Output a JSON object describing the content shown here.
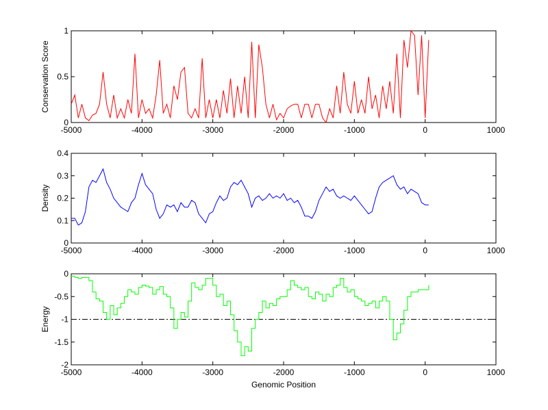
{
  "chart_data": [
    {
      "type": "line",
      "ylabel": "Conservation Score",
      "xlabel": "",
      "xlim": [
        -5000,
        1000
      ],
      "ylim": [
        0,
        1
      ],
      "xticks": [
        "-5000",
        "-4000",
        "-3000",
        "-2000",
        "-1000",
        "0",
        "1000"
      ],
      "yticks": [
        "0",
        "0.5",
        "1"
      ],
      "ytick_values": [
        0,
        0.5,
        1
      ],
      "color": "#ff0000",
      "x_start": -5000,
      "x_step": 50,
      "step": false,
      "values": [
        0.2,
        0.3,
        0.05,
        0.2,
        0.05,
        0.02,
        0.08,
        0.1,
        0.2,
        0.55,
        0.2,
        0.05,
        0.3,
        0.05,
        0.15,
        0.05,
        0.25,
        0.1,
        0.75,
        0.05,
        0.25,
        0.1,
        0.15,
        0.05,
        0.3,
        0.68,
        0.1,
        0.2,
        0.05,
        0.4,
        0.25,
        0.55,
        0.6,
        0.1,
        0.05,
        0.15,
        0.05,
        0.7,
        0.05,
        0.25,
        0.05,
        0.25,
        0.05,
        0.35,
        0.1,
        0.48,
        0.05,
        0.4,
        0.1,
        0.5,
        0.05,
        0.88,
        0.05,
        0.85,
        0.6,
        0.2,
        0.05,
        0.2,
        0.03,
        0.1,
        0.05,
        0.15,
        0.18,
        0.2,
        0.2,
        0.05,
        0.2,
        0.2,
        0.05,
        0.2,
        0.2,
        0.05,
        0.0,
        0.15,
        0.05,
        0.4,
        0.1,
        0.55,
        0.2,
        0.1,
        0.45,
        0.1,
        0.25,
        0.1,
        0.5,
        0.15,
        0.3,
        0.05,
        0.4,
        0.15,
        0.45,
        0.1,
        0.75,
        0.05,
        0.9,
        0.6,
        1.0,
        0.95,
        0.3,
        0.95,
        0.05,
        0.9
      ]
    },
    {
      "type": "line",
      "ylabel": "Density",
      "xlabel": "",
      "xlim": [
        -5000,
        1000
      ],
      "ylim": [
        0,
        0.4
      ],
      "xticks": [
        "-5000",
        "-4000",
        "-3000",
        "-2000",
        "-1000",
        "0",
        "1000"
      ],
      "yticks": [
        "0",
        "0.1",
        "0.2",
        "0.3",
        "0.4"
      ],
      "ytick_values": [
        0,
        0.1,
        0.2,
        0.3,
        0.4
      ],
      "color": "#0000ff",
      "x_start": -5000,
      "x_step": 50,
      "step": false,
      "values": [
        0.11,
        0.11,
        0.08,
        0.09,
        0.14,
        0.25,
        0.28,
        0.27,
        0.3,
        0.33,
        0.27,
        0.24,
        0.2,
        0.18,
        0.16,
        0.15,
        0.14,
        0.18,
        0.2,
        0.26,
        0.31,
        0.26,
        0.24,
        0.22,
        0.15,
        0.11,
        0.13,
        0.17,
        0.16,
        0.17,
        0.14,
        0.18,
        0.16,
        0.16,
        0.19,
        0.18,
        0.13,
        0.11,
        0.09,
        0.13,
        0.14,
        0.18,
        0.21,
        0.19,
        0.2,
        0.25,
        0.27,
        0.26,
        0.28,
        0.25,
        0.22,
        0.16,
        0.2,
        0.21,
        0.19,
        0.2,
        0.22,
        0.2,
        0.21,
        0.2,
        0.22,
        0.19,
        0.2,
        0.18,
        0.19,
        0.16,
        0.12,
        0.12,
        0.11,
        0.14,
        0.19,
        0.22,
        0.25,
        0.23,
        0.24,
        0.21,
        0.2,
        0.21,
        0.2,
        0.19,
        0.21,
        0.19,
        0.17,
        0.15,
        0.13,
        0.14,
        0.2,
        0.25,
        0.27,
        0.28,
        0.29,
        0.3,
        0.26,
        0.24,
        0.25,
        0.22,
        0.24,
        0.23,
        0.22,
        0.18,
        0.17,
        0.17
      ]
    },
    {
      "type": "line",
      "ylabel": "Energy",
      "xlabel": "Genomic Position",
      "xlim": [
        -5000,
        1000
      ],
      "ylim": [
        -2,
        0
      ],
      "xticks": [
        "-5000",
        "-4000",
        "-3000",
        "-2000",
        "-1000",
        "0",
        "1000"
      ],
      "yticks": [
        "-2",
        "-1.5",
        "-1",
        "-0.5",
        "0"
      ],
      "ytick_values": [
        -2,
        -1.5,
        -1,
        -0.5,
        0
      ],
      "color": "#00ff00",
      "x_start": -5000,
      "x_step": 50,
      "step": true,
      "threshold": -1,
      "values": [
        -0.05,
        -0.08,
        -0.1,
        -0.08,
        -0.08,
        -0.15,
        -0.4,
        -0.55,
        -0.6,
        -0.85,
        -1.0,
        -0.7,
        -0.9,
        -0.75,
        -0.65,
        -0.5,
        -0.35,
        -0.4,
        -0.45,
        -0.3,
        -0.25,
        -0.27,
        -0.3,
        -0.45,
        -0.35,
        -0.28,
        -0.45,
        -0.5,
        -0.75,
        -1.2,
        -1.0,
        -0.85,
        -0.95,
        -0.6,
        -0.2,
        -0.3,
        -0.35,
        -0.25,
        -0.1,
        -0.1,
        -0.25,
        -0.5,
        -0.45,
        -0.7,
        -0.6,
        -0.9,
        -1.25,
        -1.5,
        -1.8,
        -1.6,
        -1.7,
        -1.2,
        -1.0,
        -0.85,
        -0.6,
        -0.75,
        -0.65,
        -0.7,
        -0.55,
        -0.5,
        -0.5,
        -0.35,
        -0.15,
        -0.25,
        -0.3,
        -0.35,
        -0.3,
        -0.5,
        -0.55,
        -0.4,
        -0.45,
        -0.6,
        -0.45,
        -0.5,
        -0.3,
        -0.25,
        -0.1,
        -0.3,
        -0.4,
        -0.35,
        -0.5,
        -0.55,
        -0.6,
        -0.7,
        -0.65,
        -0.6,
        -0.75,
        -0.6,
        -0.5,
        -0.6,
        -1.0,
        -1.45,
        -1.3,
        -1.1,
        -0.8,
        -0.5,
        -0.4,
        -0.4,
        -0.35,
        -0.35,
        -0.35,
        -0.25
      ]
    }
  ]
}
